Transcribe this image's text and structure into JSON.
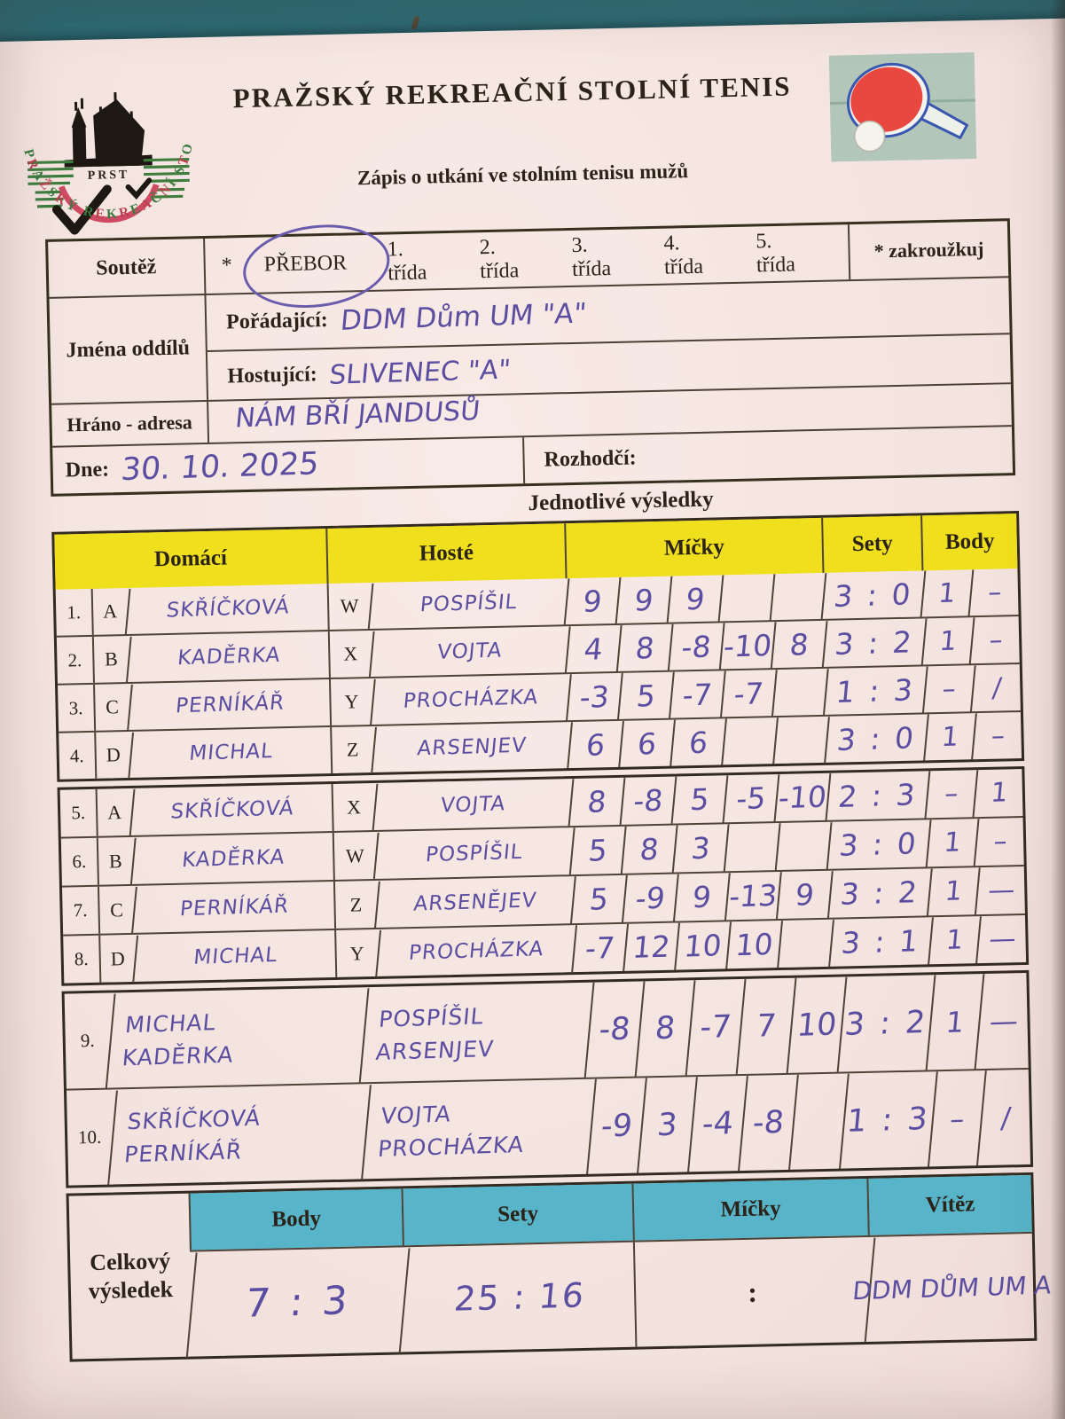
{
  "header": {
    "org_title": "PRAŽSKÝ  REKREAČNÍ  STOLNÍ  TENIS",
    "doc_title": "Zápis o utkání ve stolním tenisu mužů",
    "logo": {
      "abbr": "PRST",
      "ring_text": "PRAŽSKÝ REKREAČNÍ STOLNÍ TENIS"
    },
    "icons": {
      "paddle": "table-tennis-paddle-icon",
      "logo": "club-logo-icon"
    }
  },
  "info": {
    "soutez_label": "Soutěž",
    "asterisk": "*",
    "circled_class": "PŘEBOR",
    "classes": [
      "1. třída",
      "2. třída",
      "3. třída",
      "4. třída",
      "5. třída"
    ],
    "zakrouzkuj_note": "*  zakroužkuj",
    "teams_label": "Jména oddílů",
    "organizer_label": "Pořádající:",
    "organizer_value": "DDM Dům UM \"A\"",
    "visiting_label": "Hostující:",
    "visiting_value": "SLIVENEC \"A\"",
    "venue_label": "Hráno - adresa",
    "venue_value": "NÁM BŘÍ JANDUSŮ",
    "date_label": "Dne:",
    "date_value": "30. 10. 2025",
    "referee_label": "Rozhodčí:"
  },
  "results": {
    "section_title": "Jednotlivé výsledky",
    "headers": {
      "domaci": "Domácí",
      "hoste": "Hosté",
      "micky": "Míčky",
      "sety": "Sety",
      "body": "Body"
    },
    "singles1": [
      {
        "num": "1.",
        "hletter": "A",
        "home": "SKŘÍČKOVÁ",
        "gletter": "W",
        "guest": "POSPÍŠIL",
        "balls": [
          "9",
          "9",
          "9",
          "",
          ""
        ],
        "sety": "3 : 0",
        "body_home": "1",
        "body_guest": "–"
      },
      {
        "num": "2.",
        "hletter": "B",
        "home": "KADĚRKA",
        "gletter": "X",
        "guest": "VOJTA",
        "balls": [
          "4",
          "8",
          "-8",
          "-10",
          "8"
        ],
        "sety": "3 : 2",
        "body_home": "1",
        "body_guest": "–"
      },
      {
        "num": "3.",
        "hletter": "C",
        "home": "PERNÍKÁŘ",
        "gletter": "Y",
        "guest": "PROCHÁZKA",
        "balls": [
          "-3",
          "5",
          "-7",
          "-7",
          ""
        ],
        "sety": "1 : 3",
        "body_home": "–",
        "body_guest": "/"
      },
      {
        "num": "4.",
        "hletter": "D",
        "home": "MICHAL",
        "gletter": "Z",
        "guest": "ARSENJEV",
        "balls": [
          "6",
          "6",
          "6",
          "",
          ""
        ],
        "sety": "3 : 0",
        "body_home": "1",
        "body_guest": "–"
      }
    ],
    "singles2": [
      {
        "num": "5.",
        "hletter": "A",
        "home": "SKŘÍČKOVÁ",
        "gletter": "X",
        "guest": "VOJTA",
        "balls": [
          "8",
          "-8",
          "5",
          "-5",
          "-10"
        ],
        "sety": "2 : 3",
        "body_home": "–",
        "body_guest": "1"
      },
      {
        "num": "6.",
        "hletter": "B",
        "home": "KADĚRKA",
        "gletter": "W",
        "guest": "POSPÍŠIL",
        "balls": [
          "5",
          "8",
          "3",
          "",
          ""
        ],
        "sety": "3 : 0",
        "body_home": "1",
        "body_guest": "–"
      },
      {
        "num": "7.",
        "hletter": "C",
        "home": "PERNÍKÁŘ",
        "gletter": "Z",
        "guest": "ARSENĚJEV",
        "balls": [
          "5",
          "-9",
          "9",
          "-13",
          "9"
        ],
        "sety": "3 : 2",
        "body_home": "1",
        "body_guest": "—"
      },
      {
        "num": "8.",
        "hletter": "D",
        "home": "MICHAL",
        "gletter": "Y",
        "guest": "PROCHÁZKA",
        "balls": [
          "-7",
          "12",
          "10",
          "10",
          ""
        ],
        "sety": "3 : 1",
        "body_home": "1",
        "body_guest": "—"
      }
    ],
    "doubles": [
      {
        "num": "9.",
        "home": [
          "MICHAL",
          "KADĚRKA"
        ],
        "guest": [
          "POSPÍŠIL",
          "ARSENJEV"
        ],
        "balls": [
          "-8",
          "8",
          "-7",
          "7",
          "10"
        ],
        "sety": "3 : 2",
        "body_home": "1",
        "body_guest": "—"
      },
      {
        "num": "10.",
        "home": [
          "SKŘÍČKOVÁ",
          "PERNÍKÁŘ"
        ],
        "guest": [
          "VOJTA",
          "PROCHÁZKA"
        ],
        "balls": [
          "-9",
          "3",
          "-4",
          "-8",
          ""
        ],
        "sety": "1 : 3",
        "body_home": "–",
        "body_guest": "/"
      }
    ]
  },
  "summary": {
    "label_line1": "Celkový",
    "label_line2": "výsledek",
    "headers": {
      "body": "Body",
      "sety": "Sety",
      "micky": "Míčky",
      "vitez": "Vítěz"
    },
    "body_value": "7 : 3",
    "sety_value": "25 : 16",
    "micky_value": ":",
    "vitez_value": "DDM DŮM UM  A"
  },
  "colors": {
    "table_surface": "#2c6872",
    "paper": "#f4e4e0",
    "header_yellow": "#efdf1d",
    "header_blue": "#58b4c9",
    "pen_ink": "#5b4ea0",
    "paddle_red": "#e8483f"
  }
}
